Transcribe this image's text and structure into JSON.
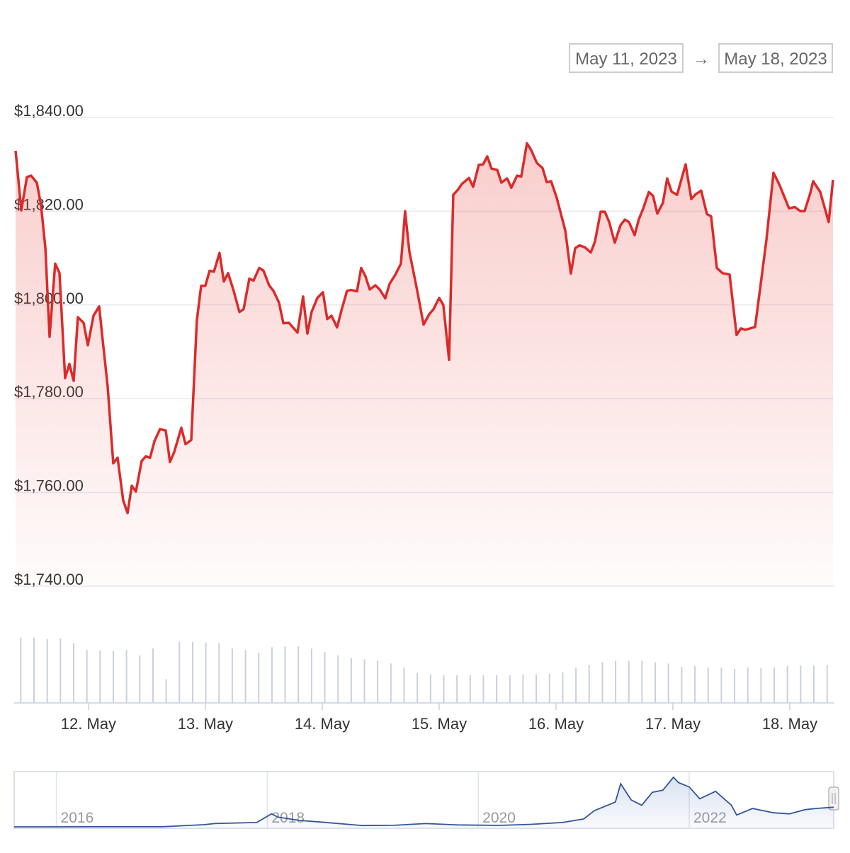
{
  "chart_data": [
    {
      "type": "line",
      "range_from": "May 11, 2023",
      "range_separator": "→",
      "range_to": "May 18, 2023",
      "color": "#dc2a2a",
      "grid": true,
      "xlim": [
        11.364,
        18.376
      ],
      "xticks": [
        {
          "value": 12,
          "label": "12. May"
        },
        {
          "value": 13,
          "label": "13. May"
        },
        {
          "value": 14,
          "label": "14. May"
        },
        {
          "value": 15,
          "label": "15. May"
        },
        {
          "value": 16,
          "label": "16. May"
        },
        {
          "value": 17,
          "label": "17. May"
        },
        {
          "value": 18,
          "label": "18. May"
        }
      ],
      "ylim": [
        1740,
        1840
      ],
      "yticks": [
        {
          "value": 1740,
          "label": "$1,740.00"
        },
        {
          "value": 1760,
          "label": "$1,760.00"
        },
        {
          "value": 1780,
          "label": "$1,780.00"
        },
        {
          "value": 1800,
          "label": "$1,800.00"
        },
        {
          "value": 1820,
          "label": "$1,820.00"
        },
        {
          "value": 1840,
          "label": "$1,840.00"
        }
      ],
      "x": [
        11.376,
        11.425,
        11.473,
        11.509,
        11.558,
        11.594,
        11.631,
        11.667,
        11.715,
        11.752,
        11.8,
        11.837,
        11.873,
        11.909,
        11.958,
        11.994,
        12.043,
        12.091,
        12.128,
        12.164,
        12.212,
        12.249,
        12.297,
        12.334,
        12.37,
        12.406,
        12.455,
        12.491,
        12.527,
        12.564,
        12.612,
        12.661,
        12.697,
        12.733,
        12.794,
        12.83,
        12.879,
        12.927,
        12.964,
        13.0,
        13.036,
        13.073,
        13.121,
        13.158,
        13.194,
        13.242,
        13.291,
        13.327,
        13.376,
        13.412,
        13.461,
        13.497,
        13.545,
        13.582,
        13.63,
        13.667,
        13.715,
        13.788,
        13.836,
        13.873,
        13.909,
        13.958,
        14.006,
        14.043,
        14.079,
        14.127,
        14.164,
        14.212,
        14.248,
        14.297,
        14.333,
        14.37,
        14.406,
        14.455,
        14.491,
        14.539,
        14.576,
        14.624,
        14.673,
        14.709,
        14.745,
        14.806,
        14.867,
        14.915,
        14.952,
        15.0,
        15.036,
        15.085,
        15.121,
        15.158,
        15.194,
        15.255,
        15.291,
        15.339,
        15.376,
        15.412,
        15.448,
        15.497,
        15.533,
        15.582,
        15.618,
        15.667,
        15.703,
        15.751,
        15.788,
        15.836,
        15.885,
        15.921,
        15.958,
        16.006,
        16.079,
        16.127,
        16.164,
        16.2,
        16.248,
        16.297,
        16.333,
        16.382,
        16.418,
        16.455,
        16.503,
        16.551,
        16.588,
        16.624,
        16.673,
        16.709,
        16.745,
        16.794,
        16.83,
        16.867,
        16.915,
        16.951,
        16.988,
        17.036,
        17.109,
        17.158,
        17.194,
        17.242,
        17.291,
        17.327,
        17.376,
        17.424,
        17.485,
        17.545,
        17.582,
        17.618,
        17.703,
        17.752,
        17.8,
        17.861,
        17.909,
        17.994,
        18.042,
        18.091,
        18.127,
        18.176,
        18.2,
        18.261,
        18.333,
        18.37
      ],
      "values": [
        1832.9,
        1820.2,
        1827.3,
        1827.6,
        1826.1,
        1821.2,
        1812.1,
        1793.2,
        1808.8,
        1806.8,
        1784.4,
        1787.4,
        1783.8,
        1797.4,
        1796.2,
        1791.4,
        1797.7,
        1799.7,
        1790.9,
        1782.6,
        1766.2,
        1767.4,
        1758.3,
        1755.6,
        1761.4,
        1760.2,
        1766.7,
        1767.7,
        1767.4,
        1770.9,
        1773.5,
        1773.2,
        1766.5,
        1768.6,
        1773.8,
        1770.3,
        1771.2,
        1796.7,
        1804.1,
        1804.1,
        1807.3,
        1807.1,
        1811.1,
        1805.0,
        1806.8,
        1803.0,
        1798.5,
        1799.1,
        1805.6,
        1805.2,
        1807.9,
        1807.3,
        1804.2,
        1803.0,
        1800.5,
        1796.1,
        1796.2,
        1794.1,
        1801.8,
        1793.9,
        1798.5,
        1801.5,
        1802.7,
        1797.0,
        1797.7,
        1795.2,
        1798.8,
        1803.0,
        1803.2,
        1802.9,
        1807.9,
        1806.1,
        1803.3,
        1804.2,
        1803.3,
        1801.4,
        1804.5,
        1806.4,
        1808.8,
        1820.0,
        1811.4,
        1803.9,
        1795.8,
        1798.0,
        1799.1,
        1801.5,
        1800.0,
        1788.3,
        1823.5,
        1824.5,
        1825.8,
        1827.1,
        1825.2,
        1829.9,
        1830.0,
        1831.7,
        1829.1,
        1828.8,
        1826.1,
        1827.0,
        1825.0,
        1827.6,
        1827.4,
        1834.5,
        1833.0,
        1830.3,
        1829.2,
        1826.2,
        1826.4,
        1822.9,
        1815.9,
        1806.7,
        1812.1,
        1812.7,
        1812.3,
        1811.2,
        1813.5,
        1819.9,
        1819.9,
        1817.7,
        1813.3,
        1817.0,
        1818.2,
        1817.7,
        1814.9,
        1818.3,
        1820.5,
        1824.1,
        1823.3,
        1819.5,
        1821.8,
        1827.0,
        1824.2,
        1823.5,
        1830.0,
        1822.6,
        1823.6,
        1824.4,
        1819.4,
        1818.9,
        1807.9,
        1806.8,
        1806.5,
        1793.6,
        1795.0,
        1794.7,
        1795.3,
        1804.5,
        1813.9,
        1828.2,
        1825.8,
        1820.6,
        1820.9,
        1820.0,
        1820.0,
        1823.9,
        1826.4,
        1824.1,
        1817.7,
        1826.7
      ]
    },
    {
      "type": "bar",
      "color": "#c9d0de",
      "ylim": [
        0,
        100
      ],
      "values": [
        96,
        96,
        94,
        95,
        88,
        78,
        77,
        76,
        78,
        70,
        80,
        35,
        90,
        90,
        89,
        88,
        80,
        78,
        74,
        82,
        83,
        83,
        80,
        75,
        70,
        66,
        64,
        62,
        58,
        52,
        44,
        42,
        41,
        41,
        41,
        41,
        41,
        41,
        42,
        42,
        43,
        45,
        52,
        56,
        60,
        62,
        62,
        62,
        60,
        58,
        53,
        54,
        52,
        52,
        50,
        52,
        51,
        52,
        54,
        55,
        55,
        56
      ]
    },
    {
      "type": "area",
      "color": "#335599",
      "grid": true,
      "xlim": [
        2015.6,
        2023.37
      ],
      "xticks": [
        2016,
        2018,
        2020,
        2022
      ],
      "ylim": [
        0,
        4600
      ],
      "x": [
        2015.6,
        2016.0,
        2016.5,
        2017.0,
        2017.4,
        2017.5,
        2017.9,
        2018.04,
        2018.1,
        2018.3,
        2018.5,
        2018.9,
        2019.2,
        2019.5,
        2019.8,
        2020.2,
        2020.5,
        2020.8,
        2021.0,
        2021.1,
        2021.3,
        2021.35,
        2021.45,
        2021.55,
        2021.65,
        2021.75,
        2021.85,
        2021.9,
        2022.0,
        2022.1,
        2022.25,
        2022.4,
        2022.45,
        2022.6,
        2022.8,
        2022.95,
        2023.1,
        2023.2,
        2023.37
      ],
      "values": [
        1,
        1,
        12,
        9,
        200,
        300,
        400,
        1200,
        900,
        600,
        450,
        120,
        140,
        300,
        180,
        130,
        230,
        400,
        730,
        1500,
        2300,
        4000,
        2500,
        2000,
        3200,
        3400,
        4600,
        4100,
        3700,
        2600,
        3300,
        2000,
        1100,
        1700,
        1300,
        1200,
        1600,
        1700,
        1820
      ]
    }
  ]
}
